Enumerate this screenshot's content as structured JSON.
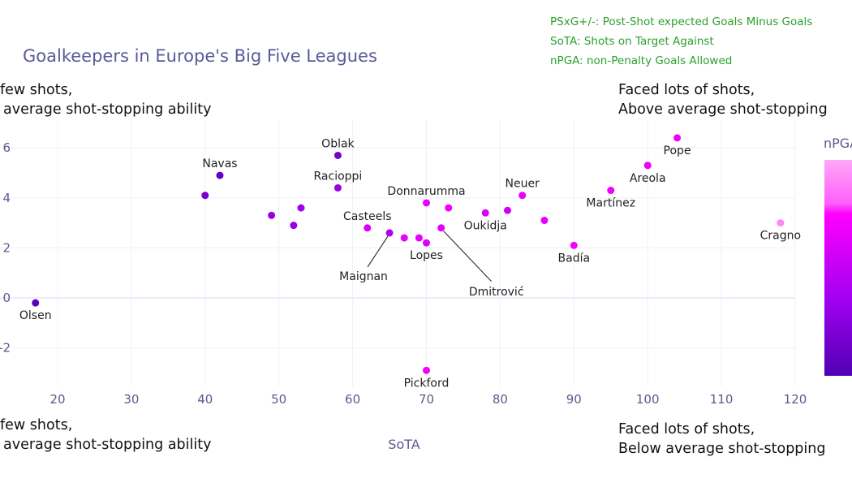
{
  "chart_data": {
    "type": "scatter",
    "title": "Goalkeepers in Europe's Big Five Leagues",
    "xlabel": "SoTA",
    "ylabel": "",
    "xlim": [
      14,
      121
    ],
    "ylim": [
      -3.6,
      7.2
    ],
    "xticks": [
      20,
      30,
      40,
      50,
      60,
      70,
      80,
      90,
      100,
      110,
      120
    ],
    "yticks": [
      6,
      4,
      2,
      0,
      -2
    ],
    "grid": true,
    "colorbar": {
      "title": "nPGA",
      "colors": [
        "#5000b4",
        "#8a00e6",
        "#ff00ff",
        "#ffa0f8"
      ]
    },
    "definitions": [
      "PSxG+/-: Post-Shot expected Goals Minus Goals",
      "SoTA: Shots on Target Against",
      "nPGA: non-Penalty Goals Allowed"
    ],
    "quadrants": {
      "top_left": [
        "few shots,",
        "average shot-stopping ability"
      ],
      "top_right": [
        "Faced lots of shots,",
        "Above average shot-stopping"
      ],
      "bottom_left": [
        "few shots,",
        "average shot-stopping ability"
      ],
      "bottom_right": [
        "Faced lots of shots,",
        "Below average shot-stopping"
      ]
    },
    "points": [
      {
        "x": 17,
        "y": -0.2,
        "c": 0.05,
        "label": "Olsen",
        "pos": "bottom"
      },
      {
        "x": 42,
        "y": 4.9,
        "c": 0.1,
        "label": "Navas",
        "pos": "top"
      },
      {
        "x": 40,
        "y": 4.1,
        "c": 0.18,
        "label": ""
      },
      {
        "x": 49,
        "y": 3.3,
        "c": 0.3,
        "label": ""
      },
      {
        "x": 52,
        "y": 2.9,
        "c": 0.3,
        "label": ""
      },
      {
        "x": 53,
        "y": 3.6,
        "c": 0.35,
        "label": ""
      },
      {
        "x": 58,
        "y": 5.7,
        "c": 0.15,
        "label": "Oblak",
        "pos": "top"
      },
      {
        "x": 58,
        "y": 4.4,
        "c": 0.3,
        "label": "Racioppi",
        "pos": "top"
      },
      {
        "x": 62,
        "y": 2.8,
        "c": 0.6,
        "label": "Casteels",
        "pos": "top"
      },
      {
        "x": 65,
        "y": 2.6,
        "c": 0.4,
        "label": "Maignan",
        "pos": "arrow-left"
      },
      {
        "x": 67,
        "y": 2.4,
        "c": 0.65,
        "label": ""
      },
      {
        "x": 69,
        "y": 2.4,
        "c": 0.65,
        "label": ""
      },
      {
        "x": 70,
        "y": 2.2,
        "c": 0.6,
        "label": "Lopes",
        "pos": "bottom"
      },
      {
        "x": 70,
        "y": 3.8,
        "c": 0.65,
        "label": "Donnarumma",
        "pos": "top"
      },
      {
        "x": 72,
        "y": 2.8,
        "c": 0.65,
        "label": "Dmitrović",
        "pos": "arrow-right"
      },
      {
        "x": 73,
        "y": 3.6,
        "c": 0.68,
        "label": ""
      },
      {
        "x": 78,
        "y": 3.4,
        "c": 0.6,
        "label": "Oukidja",
        "pos": "bottom"
      },
      {
        "x": 81,
        "y": 3.5,
        "c": 0.55,
        "label": ""
      },
      {
        "x": 83,
        "y": 4.1,
        "c": 0.65,
        "label": "Neuer",
        "pos": "top"
      },
      {
        "x": 86,
        "y": 3.1,
        "c": 0.65,
        "label": ""
      },
      {
        "x": 90,
        "y": 2.1,
        "c": 0.7,
        "label": "Badía",
        "pos": "bottom"
      },
      {
        "x": 95,
        "y": 4.3,
        "c": 0.68,
        "label": "Martínez",
        "pos": "bottom"
      },
      {
        "x": 100,
        "y": 5.3,
        "c": 0.68,
        "label": "Areola",
        "pos": "bottom"
      },
      {
        "x": 104,
        "y": 6.4,
        "c": 0.68,
        "label": "Pope",
        "pos": "bottom"
      },
      {
        "x": 118,
        "y": 3.0,
        "c": 0.95,
        "label": "Cragno",
        "pos": "bottom"
      },
      {
        "x": 70,
        "y": -2.9,
        "c": 0.7,
        "label": "Pickford",
        "pos": "bottom"
      }
    ]
  }
}
